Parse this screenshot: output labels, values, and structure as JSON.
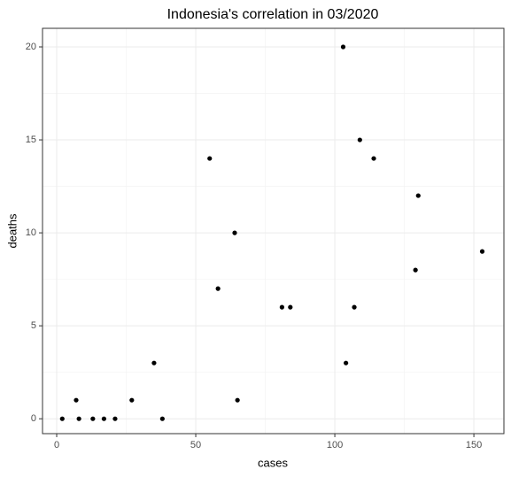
{
  "chart_data": {
    "type": "scatter",
    "title": "Indonesia's correlation in 03/2020",
    "x_label": "cases",
    "y_label": "deaths",
    "color": "#000000",
    "grid": true,
    "x": [
      2,
      7,
      8,
      13,
      17,
      21,
      27,
      35,
      38,
      55,
      58,
      64,
      65,
      81,
      84,
      103,
      104,
      107,
      109,
      114,
      129,
      130,
      153
    ],
    "values": [
      0,
      1,
      0,
      0,
      0,
      0,
      1,
      3,
      0,
      14,
      7,
      10,
      1,
      6,
      6,
      20,
      3,
      6,
      15,
      14,
      8,
      12,
      9
    ],
    "xlim": [
      -5.1,
      160.8
    ],
    "ylim": [
      -0.8,
      21
    ],
    "xticks": [
      0,
      50,
      100,
      150
    ],
    "yticks": [
      0,
      5,
      10,
      15,
      20
    ]
  }
}
